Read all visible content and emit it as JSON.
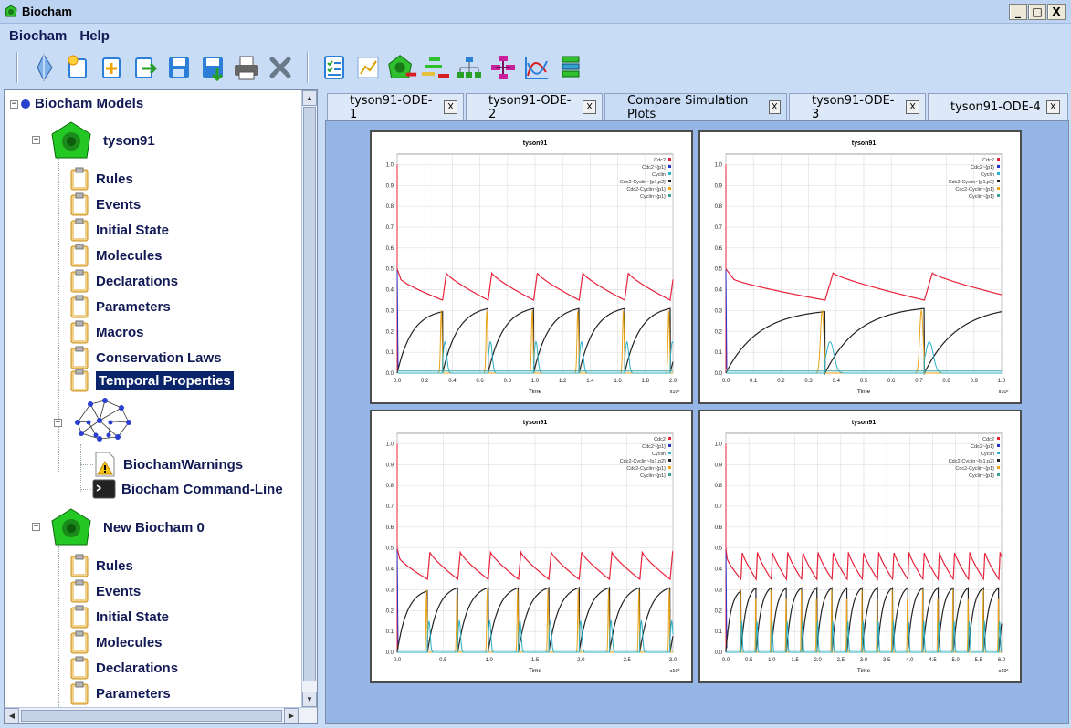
{
  "window": {
    "title": "Biocham",
    "buttons": [
      "_",
      "□",
      "X"
    ]
  },
  "menu": [
    "Biocham",
    "Help"
  ],
  "toolbar": {
    "groups": [
      [
        "new-model-icon",
        "new-icon",
        "add-file-icon",
        "export-icon",
        "save-icon",
        "save-as-icon",
        "print-icon",
        "close-tools-icon"
      ],
      [
        "checklist-icon",
        "plot-icon",
        "model-remove-icon",
        "bars-icon",
        "hierarchy-icon",
        "network-icon",
        "curves-icon",
        "stack-icon"
      ]
    ]
  },
  "tree": {
    "root": "Biocham Models",
    "models": [
      {
        "name": "tyson91",
        "items": [
          "Rules",
          "Events",
          "Initial State",
          "Molecules",
          "Declarations",
          "Parameters",
          "Macros",
          "Conservation Laws",
          "Temporal Properties"
        ],
        "selected": "Temporal Properties",
        "extras": [
          "BiochamWarnings",
          "Biocham Command-Line"
        ]
      },
      {
        "name": "New Biocham 0",
        "items": [
          "Rules",
          "Events",
          "Initial State",
          "Molecules",
          "Declarations",
          "Parameters"
        ]
      }
    ]
  },
  "tabs": [
    {
      "label": "tyson91-ODE-1",
      "active": false
    },
    {
      "label": "tyson91-ODE-2",
      "active": false
    },
    {
      "label": "Compare Simulation Plots",
      "active": true
    },
    {
      "label": "tyson91-ODE-3",
      "active": false
    },
    {
      "label": "tyson91-ODE-4",
      "active": false
    }
  ],
  "tab_close_label": "X",
  "legend_colors": [
    "#e8213a",
    "#2233cc",
    "#2ab0c8",
    "#222222",
    "#e8a317",
    "#3aa0a0"
  ],
  "chart_data": [
    {
      "type": "line",
      "title": "tyson91",
      "xlabel": "Time",
      "ylabel": "",
      "x_multiplier": "x10³",
      "xlim": [
        0,
        2.0
      ],
      "ylim": [
        0,
        1.05
      ],
      "xticks": [
        "0.0",
        "0.2",
        "0.4",
        "0.6",
        "0.8",
        "1.0",
        "1.2",
        "1.4",
        "1.6",
        "1.8",
        "2.0"
      ],
      "yticks": [
        "0.0",
        "0.1",
        "0.2",
        "0.3",
        "0.4",
        "0.5",
        "0.6",
        "0.7",
        "0.8",
        "0.9",
        "1.0"
      ],
      "legend": [
        "Cdc2",
        "Cdc2~{p1}",
        "Cyclin",
        "Cdc2-Cyclin~{p1,p2}",
        "Cdc2-Cyclin~{p1}",
        "Cyclin~{p1}"
      ],
      "legend_position": "top-right",
      "grid": true,
      "period": 0.33,
      "cycles": 5,
      "variant": 1
    },
    {
      "type": "line",
      "title": "tyson91",
      "xlabel": "Time",
      "ylabel": "",
      "x_multiplier": "x10³",
      "xlim": [
        0,
        1.0
      ],
      "ylim": [
        0,
        1.05
      ],
      "xticks": [
        "0.0",
        "0.1",
        "0.2",
        "0.3",
        "0.4",
        "0.5",
        "0.6",
        "0.7",
        "0.8",
        "0.9",
        "1.0"
      ],
      "yticks": [
        "0.0",
        "0.1",
        "0.2",
        "0.3",
        "0.4",
        "0.5",
        "0.6",
        "0.7",
        "0.8",
        "0.9",
        "1.0"
      ],
      "legend": [
        "Cdc2",
        "Cdc2~{p1}",
        "Cyclin",
        "Cdc2-Cyclin~{p1,p2}",
        "Cdc2-Cyclin~{p1}",
        "Cyclin~{p1}"
      ],
      "legend_position": "top-right",
      "grid": true,
      "period": 0.36,
      "cycles": 2,
      "variant": 2
    },
    {
      "type": "line",
      "title": "tyson91",
      "xlabel": "Time",
      "ylabel": "",
      "x_multiplier": "x10³",
      "xlim": [
        0,
        3.0
      ],
      "ylim": [
        0,
        1.05
      ],
      "xticks": [
        "0.0",
        "0.5",
        "1.0",
        "1.5",
        "2.0",
        "2.5",
        "3.0"
      ],
      "yticks": [
        "0.0",
        "0.1",
        "0.2",
        "0.3",
        "0.4",
        "0.5",
        "0.6",
        "0.7",
        "0.8",
        "0.9",
        "1.0"
      ],
      "legend": [
        "Cdc2",
        "Cdc2~{p1}",
        "Cyclin",
        "Cdc2-Cyclin~{p1,p2}",
        "Cdc2-Cyclin~{p1}",
        "Cyclin~{p1}"
      ],
      "legend_position": "top-right",
      "grid": true,
      "period": 0.33,
      "cycles": 8,
      "variant": 1
    },
    {
      "type": "line",
      "title": "tyson91",
      "xlabel": "Time",
      "ylabel": "",
      "x_multiplier": "x10³",
      "xlim": [
        0,
        6.0
      ],
      "ylim": [
        0,
        1.05
      ],
      "xticks": [
        "0.0",
        "0.5",
        "1.0",
        "1.5",
        "2.0",
        "2.5",
        "3.0",
        "3.5",
        "4.0",
        "4.5",
        "5.0",
        "5.5",
        "6.0"
      ],
      "yticks": [
        "0.0",
        "0.1",
        "0.2",
        "0.3",
        "0.4",
        "0.5",
        "0.6",
        "0.7",
        "0.8",
        "0.9",
        "1.0"
      ],
      "legend": [
        "Cdc2",
        "Cdc2~{p1}",
        "Cyclin",
        "Cdc2-Cyclin~{p1,p2}",
        "Cdc2-Cyclin~{p1}",
        "Cyclin~{p1}"
      ],
      "legend_position": "top-right",
      "grid": true,
      "period": 0.33,
      "cycles": 17,
      "variant": 1
    }
  ]
}
